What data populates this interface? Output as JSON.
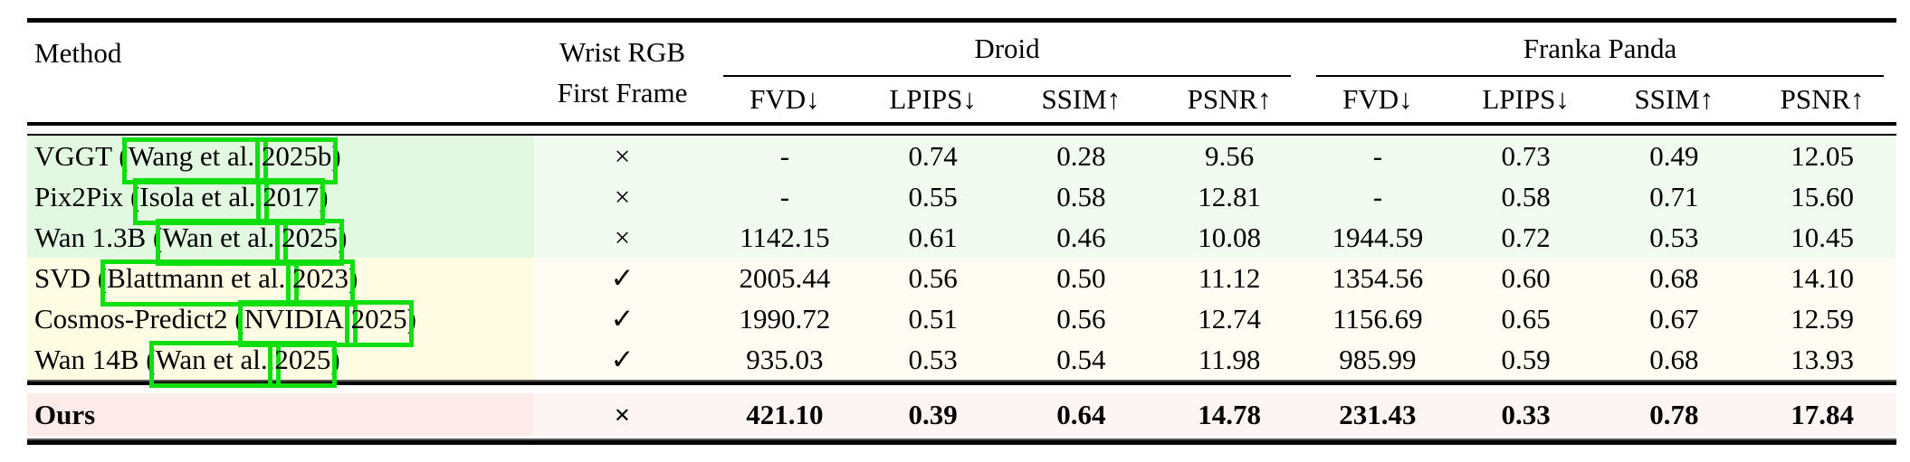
{
  "table": {
    "headers": {
      "method": "Method",
      "wrist_line1": "Wrist RGB",
      "wrist_line2": "First Frame",
      "groups": [
        {
          "label": "Droid"
        },
        {
          "label": "Franka Panda"
        }
      ],
      "metrics": [
        "FVD↓",
        "LPIPS↓",
        "SSIM↑",
        "PSNR↑",
        "FVD↓",
        "LPIPS↓",
        "SSIM↑",
        "PSNR↑"
      ]
    },
    "rows": [
      {
        "method_prefix": "VGGT (",
        "cite_author": "Wang et al.,",
        "cite_year": "2025b",
        "method_suffix": ")",
        "wrist": "×",
        "tint": "green",
        "values": [
          "-",
          "0.74",
          "0.28",
          "9.56",
          "-",
          "0.73",
          "0.49",
          "12.05"
        ]
      },
      {
        "method_prefix": "Pix2Pix (",
        "cite_author": "Isola et al.,",
        "cite_year": "2017",
        "method_suffix": ")",
        "wrist": "×",
        "tint": "green",
        "values": [
          "-",
          "0.55",
          "0.58",
          "12.81",
          "-",
          "0.58",
          "0.71",
          "15.60"
        ]
      },
      {
        "method_prefix": "Wan 1.3B (",
        "cite_author": "Wan et al.,",
        "cite_year": "2025",
        "method_suffix": ")",
        "wrist": "×",
        "tint": "green",
        "values": [
          "1142.15",
          "0.61",
          "0.46",
          "10.08",
          "1944.59",
          "0.72",
          "0.53",
          "10.45"
        ]
      },
      {
        "method_prefix": "SVD (",
        "cite_author": "Blattmann et al.,",
        "cite_year": "2023",
        "method_suffix": ")",
        "wrist": "✓",
        "tint": "yellow",
        "values": [
          "2005.44",
          "0.56",
          "0.50",
          "11.12",
          "1354.56",
          "0.60",
          "0.68",
          "14.10"
        ]
      },
      {
        "method_prefix": "Cosmos-Predict2 (",
        "cite_author": "NVIDIA,",
        "cite_year": "2025",
        "method_suffix": ")",
        "wrist": "✓",
        "tint": "yellow",
        "values": [
          "1990.72",
          "0.51",
          "0.56",
          "12.74",
          "1156.69",
          "0.65",
          "0.67",
          "12.59"
        ]
      },
      {
        "method_prefix": "Wan 14B (",
        "cite_author": "Wan et al.,",
        "cite_year": "2025",
        "method_suffix": ")",
        "wrist": "✓",
        "tint": "yellow",
        "values": [
          "935.03",
          "0.53",
          "0.54",
          "11.98",
          "985.99",
          "0.59",
          "0.68",
          "13.93"
        ]
      }
    ],
    "ours_row": {
      "method_prefix": "Ours",
      "cite_author": null,
      "cite_year": null,
      "method_suffix": "",
      "wrist": "×",
      "tint": "pink",
      "values": [
        "421.10",
        "0.39",
        "0.64",
        "14.78",
        "231.43",
        "0.33",
        "0.78",
        "17.84"
      ]
    }
  },
  "colors": {
    "link_annotation_green": "#0fdf0f",
    "row_green_method": "#e3f8e0",
    "row_green_body": "#f2fbf0",
    "row_yellow_method": "#fffce4",
    "row_yellow_body": "#fffdf3",
    "row_pink_method": "#fcebe9",
    "row_pink_body": "#fdf5f4",
    "rule_black": "#000000"
  }
}
